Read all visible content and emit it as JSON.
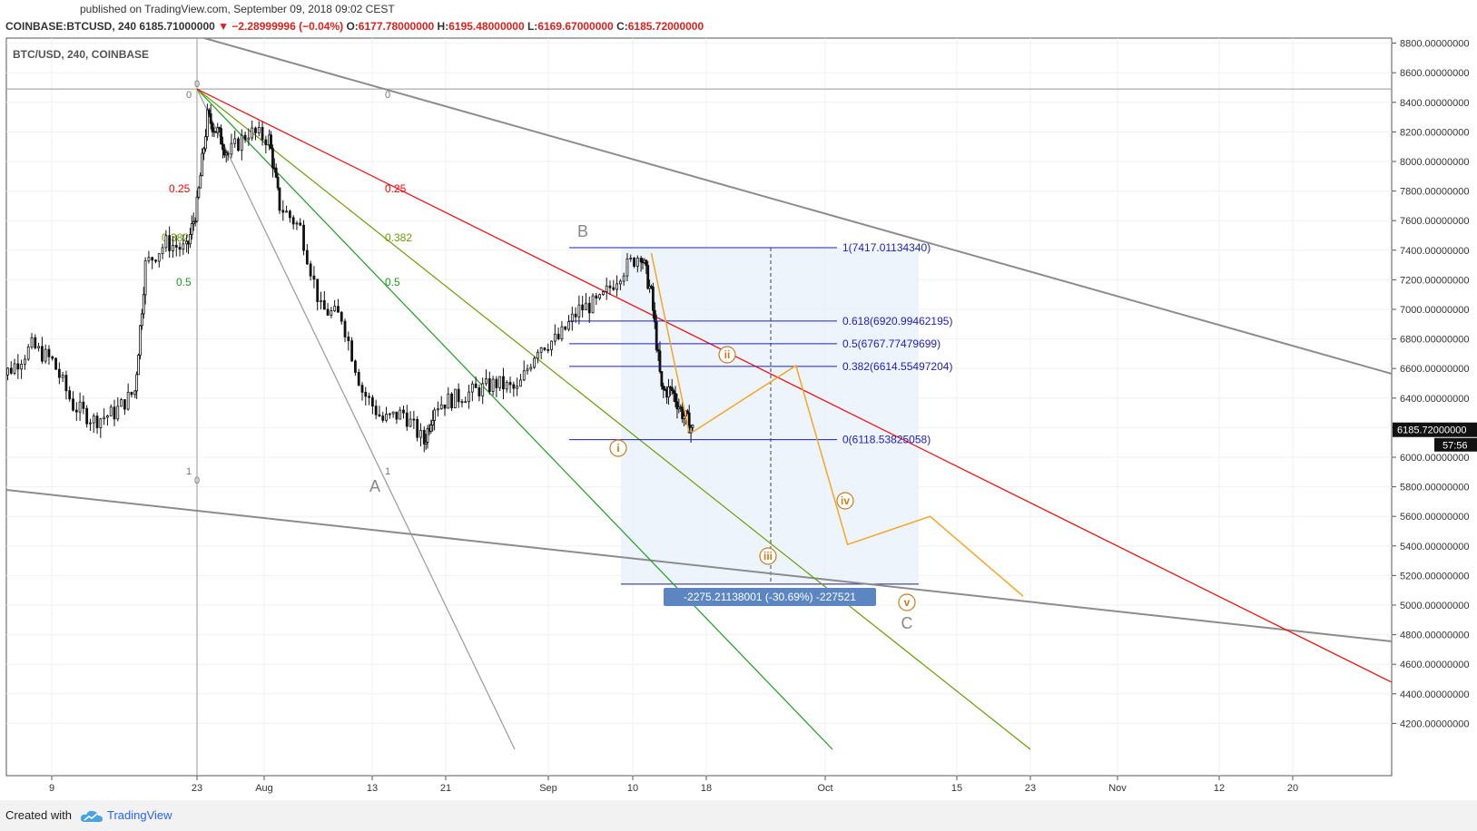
{
  "header": {
    "published": "published on TradingView.com, September 09, 2018 09:02 CEST",
    "symbol_line": "COINBASE:BTCUSD, 240",
    "last": "6185.71000000",
    "change": "▼ −2.28999996 (−0.04%)",
    "o": "6177.78000000",
    "h": "6195.48000000",
    "l": "6169.67000000",
    "c": "6185.72000000"
  },
  "chart_data": {
    "type": "candlestick",
    "title": "BTC/USD, 240, COINBASE",
    "ylim": [
      4000,
      8900
    ],
    "y_ticks": [
      4200,
      4400,
      4600,
      4800,
      5000,
      5200,
      5400,
      5600,
      5800,
      6000,
      6200,
      6400,
      6600,
      6800,
      7000,
      7200,
      7400,
      7600,
      7800,
      8000,
      8200,
      8400,
      8600,
      8800
    ],
    "y_tick_labels": [
      "4200.00000000",
      "4400.00000000",
      "4600.00000000",
      "4800.00000000",
      "5000.00000000",
      "5200.00000000",
      "5400.00000000",
      "5600.00000000",
      "5800.00000000",
      "6000.00000000",
      "6200.00000000",
      "6400.00000000",
      "6600.00000000",
      "6800.00000000",
      "7000.00000000",
      "7200.00000000",
      "7400.00000000",
      "7600.00000000",
      "7800.00000000",
      "8000.00000000",
      "8200.00000000",
      "8400.00000000",
      "8600.00000000",
      "8800.00000000"
    ],
    "x_ticks": [
      "9",
      "23",
      "Aug",
      "13",
      "21",
      "Sep",
      "10",
      "18",
      "Oct",
      "15",
      "23",
      "Nov",
      "12",
      "20"
    ],
    "last_price_label": "6185.72000000",
    "countdown": "57:56",
    "price_path": [
      [
        "2018-07-03",
        6500
      ],
      [
        "2018-07-05",
        6600
      ],
      [
        "2018-07-07",
        6750
      ],
      [
        "2018-07-09",
        6650
      ],
      [
        "2018-07-11",
        6350
      ],
      [
        "2018-07-13",
        6250
      ],
      [
        "2018-07-15",
        6300
      ],
      [
        "2018-07-17",
        6450
      ],
      [
        "2018-07-18",
        7300
      ],
      [
        "2018-07-20",
        7450
      ],
      [
        "2018-07-22",
        7400
      ],
      [
        "2018-07-23",
        7700
      ],
      [
        "2018-07-24",
        8300
      ],
      [
        "2018-07-25",
        8200
      ],
      [
        "2018-07-26",
        8050
      ],
      [
        "2018-07-28",
        8200
      ],
      [
        "2018-07-30",
        8150
      ],
      [
        "2018-07-31",
        7700
      ],
      [
        "2018-08-02",
        7550
      ],
      [
        "2018-08-04",
        7000
      ],
      [
        "2018-08-06",
        6950
      ],
      [
        "2018-08-08",
        6450
      ],
      [
        "2018-08-10",
        6250
      ],
      [
        "2018-08-12",
        6300
      ],
      [
        "2018-08-14",
        6100
      ],
      [
        "2018-08-15",
        6350
      ],
      [
        "2018-08-17",
        6400
      ],
      [
        "2018-08-19",
        6450
      ],
      [
        "2018-08-21",
        6500
      ],
      [
        "2018-08-23",
        6450
      ],
      [
        "2018-08-25",
        6750
      ],
      [
        "2018-08-27",
        6800
      ],
      [
        "2018-08-29",
        7000
      ],
      [
        "2018-08-31",
        7050
      ],
      [
        "2018-09-02",
        7250
      ],
      [
        "2018-09-04",
        7380
      ],
      [
        "2018-09-05",
        7100
      ],
      [
        "2018-09-06",
        6450
      ],
      [
        "2018-09-07",
        6450
      ],
      [
        "2018-09-08",
        6300
      ],
      [
        "2018-09-09",
        6185
      ]
    ],
    "fib_retracement": {
      "levels": [
        "1(7417.01134340)",
        "0.618(6920.99462195)",
        "0.5(6767.77479699)",
        "0.382(6614.55497204)",
        "0(6118.53825058)"
      ],
      "prices": [
        7417.0113434,
        6920.99462195,
        6767.77479699,
        6614.55497204,
        6118.53825058
      ]
    },
    "fan_labels": [
      "0.25",
      "0.382",
      "0.5"
    ],
    "fan_zero_labels": [
      "0",
      "0",
      "0",
      "0"
    ],
    "fan_one_labels": [
      "1",
      "1"
    ],
    "wave_labels_abc": [
      "A",
      "B",
      "C"
    ],
    "wave_labels_minor": [
      "i",
      "ii",
      "iii",
      "iv",
      "v"
    ],
    "projection_path": [
      [
        "2018-09-09",
        6170
      ],
      [
        "2018-09-19",
        6620
      ],
      [
        "2018-09-24",
        5410
      ],
      [
        "2018-10-02",
        5600
      ],
      [
        "2018-10-11",
        5060
      ]
    ],
    "measure_label": "-2275.21138001 (-30.69%) -227521",
    "colors": {
      "fan_red": "#ff0000",
      "fan_olive": "#6b9e00",
      "fan_green": "#1e9e1e",
      "trend_gray": "#8c8c8c",
      "fib_blue": "#1e1ebe",
      "wave_orange": "#f5a623",
      "measure_fill": "#e8f1fb",
      "measure_badge": "#5b86c2"
    }
  },
  "footer": {
    "created_with": "Created with",
    "brand": "TradingView"
  }
}
